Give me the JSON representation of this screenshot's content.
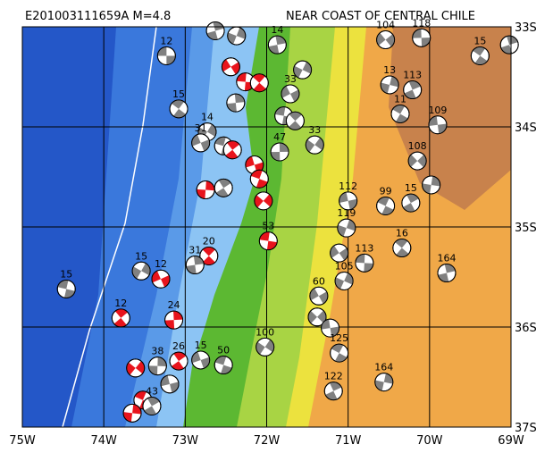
{
  "title": "E201003111659A  M=4.8",
  "region": "NEAR COAST OF CENTRAL CHILE",
  "lon_ticks": [
    {
      "value": -75,
      "label": "75W"
    },
    {
      "value": -74,
      "label": "74W"
    },
    {
      "value": -73,
      "label": "73W"
    },
    {
      "value": -72,
      "label": "72W"
    },
    {
      "value": -71,
      "label": "71W"
    },
    {
      "value": -70,
      "label": "70W"
    },
    {
      "value": -69,
      "label": "69W"
    }
  ],
  "lat_ticks": [
    {
      "value": -33,
      "label": "33S"
    },
    {
      "value": -34,
      "label": "34S"
    },
    {
      "value": -35,
      "label": "35S"
    },
    {
      "value": -36,
      "label": "36S"
    },
    {
      "value": -37,
      "label": "37S"
    }
  ],
  "lon_range": [
    -75,
    -69
  ],
  "lat_range": [
    -33,
    -37
  ],
  "events": [
    {
      "lon": -73.23,
      "lat": -33.29,
      "label": "12",
      "color": "#808080"
    },
    {
      "lon": -73.08,
      "lat": -33.82,
      "label": "15",
      "color": "#808080"
    },
    {
      "lon": -72.63,
      "lat": -33.04,
      "color": "#808080"
    },
    {
      "lon": -72.37,
      "lat": -33.09,
      "color": "#808080"
    },
    {
      "lon": -72.44,
      "lat": -33.4,
      "color": "#e8141c"
    },
    {
      "lon": -72.26,
      "lat": -33.55,
      "color": "#e8141c"
    },
    {
      "lon": -72.09,
      "lat": -33.56,
      "color": "#e8141c"
    },
    {
      "lon": -71.87,
      "lat": -33.18,
      "label": "14",
      "color": "#808080"
    },
    {
      "lon": -71.56,
      "lat": -33.43,
      "color": "#808080"
    },
    {
      "lon": -71.71,
      "lat": -33.67,
      "label": "33",
      "color": "#808080"
    },
    {
      "lon": -71.79,
      "lat": -33.89,
      "color": "#808080"
    },
    {
      "lon": -71.65,
      "lat": -33.94,
      "color": "#808080"
    },
    {
      "lon": -72.38,
      "lat": -33.76,
      "color": "#808080"
    },
    {
      "lon": -72.73,
      "lat": -34.05,
      "label": "14",
      "color": "#808080"
    },
    {
      "lon": -72.81,
      "lat": -34.16,
      "label": "31",
      "color": "#808080"
    },
    {
      "lon": -72.53,
      "lat": -34.19,
      "color": "#808080"
    },
    {
      "lon": -72.42,
      "lat": -34.23,
      "color": "#e8141c"
    },
    {
      "lon": -71.84,
      "lat": -34.25,
      "label": "47",
      "color": "#808080"
    },
    {
      "lon": -71.41,
      "lat": -34.18,
      "label": "33",
      "color": "#808080"
    },
    {
      "lon": -72.15,
      "lat": -34.38,
      "color": "#e8141c"
    },
    {
      "lon": -72.09,
      "lat": -34.52,
      "color": "#e8141c"
    },
    {
      "lon": -72.53,
      "lat": -34.61,
      "color": "#808080"
    },
    {
      "lon": -72.75,
      "lat": -34.63,
      "color": "#e8141c"
    },
    {
      "lon": -72.04,
      "lat": -34.74,
      "color": "#e8141c"
    },
    {
      "lon": -71.0,
      "lat": -34.74,
      "label": "112",
      "color": "#808080"
    },
    {
      "lon": -70.54,
      "lat": -34.79,
      "label": "99",
      "color": "#808080"
    },
    {
      "lon": -70.23,
      "lat": -34.76,
      "label": "15",
      "color": "#808080"
    },
    {
      "lon": -69.98,
      "lat": -34.58,
      "color": "#808080"
    },
    {
      "lon": -70.15,
      "lat": -34.34,
      "label": "108",
      "color": "#808080"
    },
    {
      "lon": -69.9,
      "lat": -33.98,
      "label": "109",
      "color": "#808080"
    },
    {
      "lon": -70.36,
      "lat": -33.87,
      "label": "11",
      "color": "#808080"
    },
    {
      "lon": -70.21,
      "lat": -33.63,
      "label": "113",
      "color": "#808080"
    },
    {
      "lon": -70.49,
      "lat": -33.58,
      "label": "13",
      "color": "#808080"
    },
    {
      "lon": -70.54,
      "lat": -33.13,
      "label": "104",
      "color": "#808080"
    },
    {
      "lon": -70.1,
      "lat": -33.11,
      "label": "118",
      "color": "#808080"
    },
    {
      "lon": -69.38,
      "lat": -33.29,
      "label": "15",
      "color": "#808080"
    },
    {
      "lon": -69.02,
      "lat": -33.18,
      "color": "#808080"
    },
    {
      "lon": -71.02,
      "lat": -35.01,
      "label": "119",
      "color": "#808080"
    },
    {
      "lon": -71.11,
      "lat": -35.26,
      "color": "#808080"
    },
    {
      "lon": -70.8,
      "lat": -35.36,
      "label": "113",
      "color": "#808080"
    },
    {
      "lon": -70.34,
      "lat": -35.21,
      "label": "16",
      "color": "#808080"
    },
    {
      "lon": -69.79,
      "lat": -35.46,
      "label": "164",
      "color": "#808080"
    },
    {
      "lon": -71.05,
      "lat": -35.54,
      "label": "105",
      "color": "#808080"
    },
    {
      "lon": -71.36,
      "lat": -35.69,
      "label": "60",
      "color": "#808080"
    },
    {
      "lon": -71.98,
      "lat": -35.14,
      "label": "53",
      "color": "#e8141c"
    },
    {
      "lon": -72.71,
      "lat": -35.29,
      "label": "20",
      "color": "#e8141c"
    },
    {
      "lon": -72.88,
      "lat": -35.38,
      "label": "31",
      "color": "#808080"
    },
    {
      "lon": -73.54,
      "lat": -35.44,
      "label": "15",
      "color": "#808080"
    },
    {
      "lon": -73.3,
      "lat": -35.52,
      "label": "12",
      "color": "#e8141c"
    },
    {
      "lon": -74.46,
      "lat": -35.62,
      "label": "15",
      "color": "#808080"
    },
    {
      "lon": -73.79,
      "lat": -35.91,
      "label": "12",
      "color": "#e8141c"
    },
    {
      "lon": -73.14,
      "lat": -35.93,
      "label": "24",
      "color": "#e8141c"
    },
    {
      "lon": -72.02,
      "lat": -36.2,
      "label": "100",
      "color": "#808080"
    },
    {
      "lon": -72.81,
      "lat": -36.33,
      "label": "15",
      "color": "#808080"
    },
    {
      "lon": -72.53,
      "lat": -36.38,
      "label": "50",
      "color": "#808080"
    },
    {
      "lon": -73.08,
      "lat": -36.34,
      "label": "26",
      "color": "#e8141c"
    },
    {
      "lon": -73.34,
      "lat": -36.39,
      "label": "38",
      "color": "#808080"
    },
    {
      "lon": -73.61,
      "lat": -36.41,
      "color": "#e8141c"
    },
    {
      "lon": -73.19,
      "lat": -36.57,
      "color": "#808080"
    },
    {
      "lon": -73.52,
      "lat": -36.73,
      "color": "#e8141c"
    },
    {
      "lon": -73.41,
      "lat": -36.79,
      "label": "43",
      "color": "#808080"
    },
    {
      "lon": -73.65,
      "lat": -36.86,
      "color": "#e8141c"
    },
    {
      "lon": -71.38,
      "lat": -35.9,
      "color": "#808080"
    },
    {
      "lon": -71.22,
      "lat": -36.01,
      "color": "#808080"
    },
    {
      "lon": -71.11,
      "lat": -36.26,
      "label": "125",
      "color": "#808080"
    },
    {
      "lon": -71.18,
      "lat": -36.64,
      "label": "122",
      "color": "#808080"
    },
    {
      "lon": -70.56,
      "lat": -36.55,
      "label": "164",
      "color": "#808080"
    }
  ]
}
